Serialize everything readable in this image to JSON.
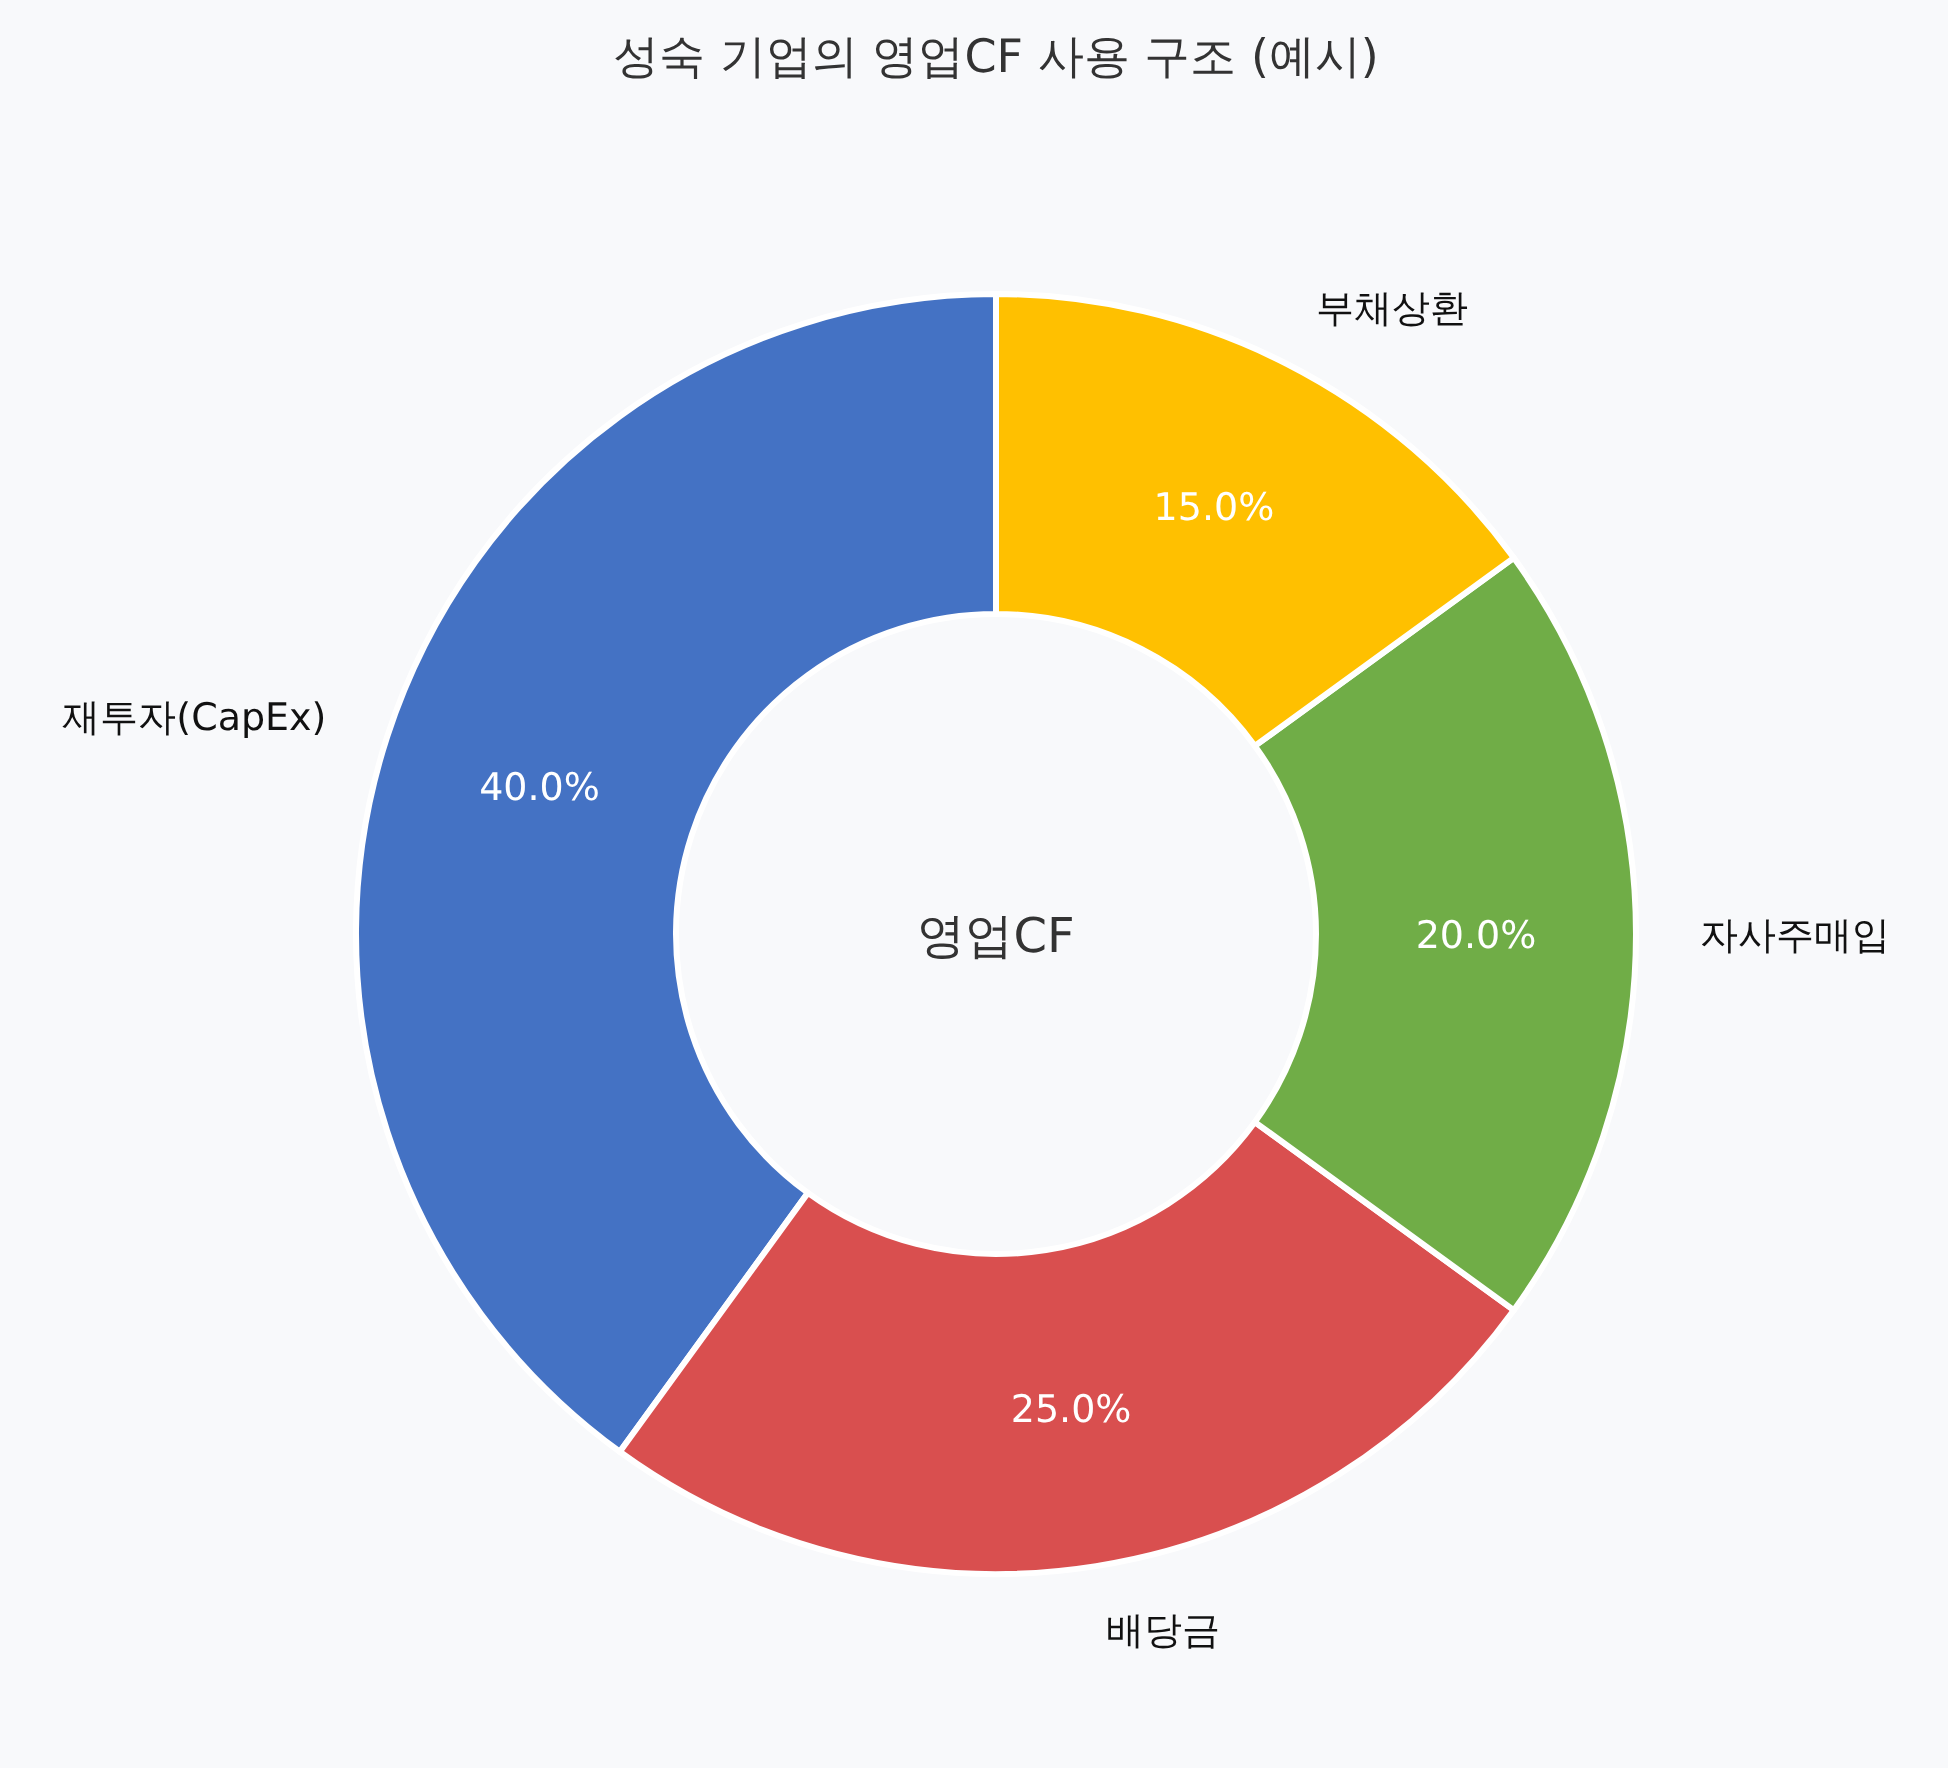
{
  "chart_data": {
    "type": "donut",
    "title": "성숙 기업의 영업CF 사용 구조 (예시)",
    "categories": [
      "재투자(CapEx)",
      "배당금",
      "자사주매입",
      "부채상환"
    ],
    "values": [
      40,
      25,
      20,
      15
    ],
    "colors": [
      "#4472c4",
      "#d94f4f",
      "#70ad47",
      "#ffc000"
    ],
    "value_labels": [
      "40.0%",
      "25.0%",
      "20.0%",
      "15.0%"
    ],
    "annotations": [
      "영업CF"
    ]
  }
}
